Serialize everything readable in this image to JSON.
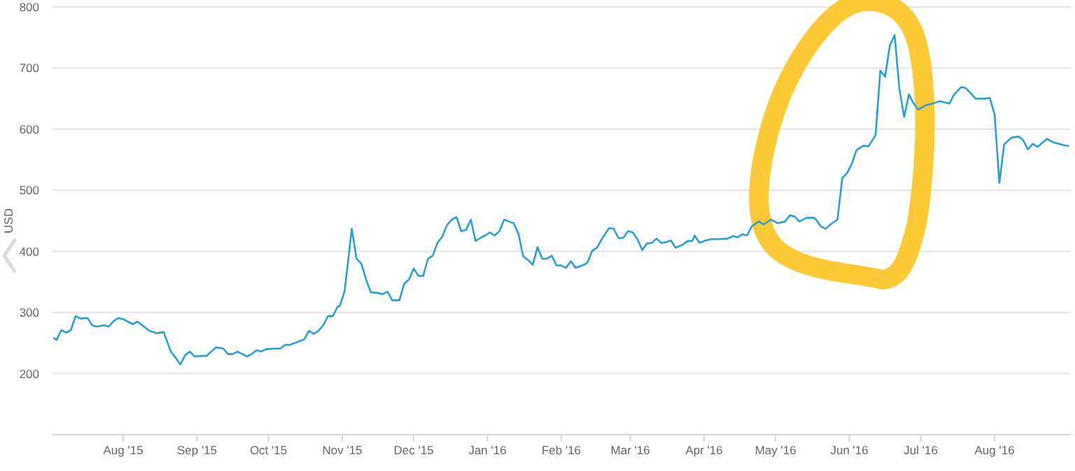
{
  "chart_data": {
    "type": "line",
    "ylabel": "USD",
    "xlim": [
      "2015-07-02",
      "2016-09-02"
    ],
    "ylim": [
      100,
      800
    ],
    "yticks": [
      200,
      300,
      400,
      500,
      600,
      700,
      800
    ],
    "xticks": [
      {
        "value": "2015-08-01",
        "label": "Aug '15"
      },
      {
        "value": "2015-09-01",
        "label": "Sep '15"
      },
      {
        "value": "2015-10-01",
        "label": "Oct '15"
      },
      {
        "value": "2015-11-01",
        "label": "Nov '15"
      },
      {
        "value": "2015-12-01",
        "label": "Dec '15"
      },
      {
        "value": "2016-01-01",
        "label": "Jan '16"
      },
      {
        "value": "2016-02-01",
        "label": "Feb '16"
      },
      {
        "value": "2016-03-01",
        "label": "Mar '16"
      },
      {
        "value": "2016-04-01",
        "label": "Apr '16"
      },
      {
        "value": "2016-05-01",
        "label": "May '16"
      },
      {
        "value": "2016-06-01",
        "label": "Jun '16"
      },
      {
        "value": "2016-07-01",
        "label": "Jul '16"
      },
      {
        "value": "2016-08-01",
        "label": "Aug '16"
      }
    ],
    "grid": "y",
    "marker": "none",
    "line_style": "solid",
    "series": [
      {
        "color": "#2a9fd6",
        "x": [
          "2015-07-03",
          "2015-07-04",
          "2015-07-06",
          "2015-07-08",
          "2015-07-10",
          "2015-07-12",
          "2015-07-14",
          "2015-07-17",
          "2015-07-19",
          "2015-07-21",
          "2015-07-24",
          "2015-07-26",
          "2015-07-28",
          "2015-07-30",
          "2015-08-01",
          "2015-08-05",
          "2015-08-07",
          "2015-08-12",
          "2015-08-15",
          "2015-08-18",
          "2015-08-21",
          "2015-08-23",
          "2015-08-25",
          "2015-08-27",
          "2015-08-29",
          "2015-08-31",
          "2015-09-03",
          "2015-09-05",
          "2015-09-07",
          "2015-09-09",
          "2015-09-12",
          "2015-09-14",
          "2015-09-16",
          "2015-09-18",
          "2015-09-22",
          "2015-09-24",
          "2015-09-26",
          "2015-09-28",
          "2015-09-30",
          "2015-10-04",
          "2015-10-06",
          "2015-10-08",
          "2015-10-10",
          "2015-10-12",
          "2015-10-14",
          "2015-10-16",
          "2015-10-18",
          "2015-10-20",
          "2015-10-22",
          "2015-10-24",
          "2015-10-26",
          "2015-10-28",
          "2015-10-30",
          "2015-10-31",
          "2015-11-02",
          "2015-11-05",
          "2015-11-07",
          "2015-11-09",
          "2015-11-11",
          "2015-11-13",
          "2015-11-16",
          "2015-11-18",
          "2015-11-20",
          "2015-11-22",
          "2015-11-25",
          "2015-11-27",
          "2015-11-29",
          "2015-12-01",
          "2015-12-03",
          "2015-12-05",
          "2015-12-07",
          "2015-12-09",
          "2015-12-11",
          "2015-12-13",
          "2015-12-15",
          "2015-12-17",
          "2015-12-19",
          "2015-12-21",
          "2015-12-23",
          "2015-12-25",
          "2015-12-27",
          "2015-12-29",
          "2015-12-31",
          "2016-01-02",
          "2016-01-04",
          "2016-01-06",
          "2016-01-08",
          "2016-01-10",
          "2016-01-12",
          "2016-01-14",
          "2016-01-16",
          "2016-01-18",
          "2016-01-20",
          "2016-01-22",
          "2016-01-24",
          "2016-01-26",
          "2016-01-28",
          "2016-01-30",
          "2016-02-01",
          "2016-02-03",
          "2016-02-05",
          "2016-02-07",
          "2016-02-09",
          "2016-02-11",
          "2016-02-12",
          "2016-02-14",
          "2016-02-16",
          "2016-02-18",
          "2016-02-21",
          "2016-02-23",
          "2016-02-25",
          "2016-02-27",
          "2016-02-29",
          "2016-03-02",
          "2016-03-04",
          "2016-03-06",
          "2016-03-08",
          "2016-03-10",
          "2016-03-12",
          "2016-03-14",
          "2016-03-16",
          "2016-03-18",
          "2016-03-20",
          "2016-03-23",
          "2016-03-25",
          "2016-03-27",
          "2016-03-28",
          "2016-03-30",
          "2016-04-01",
          "2016-04-04",
          "2016-04-07",
          "2016-04-11",
          "2016-04-13",
          "2016-04-15",
          "2016-04-17",
          "2016-04-19",
          "2016-04-21",
          "2016-04-24",
          "2016-04-26",
          "2016-04-29",
          "2016-05-02",
          "2016-05-05",
          "2016-05-07",
          "2016-05-09",
          "2016-05-11",
          "2016-05-14",
          "2016-05-17",
          "2016-05-18",
          "2016-05-20",
          "2016-05-22",
          "2016-05-24",
          "2016-05-27",
          "2016-05-29",
          "2016-05-31",
          "2016-06-02",
          "2016-06-04",
          "2016-06-07",
          "2016-06-09",
          "2016-06-12",
          "2016-06-14",
          "2016-06-16",
          "2016-06-18",
          "2016-06-20",
          "2016-06-22",
          "2016-06-24",
          "2016-06-26",
          "2016-06-28",
          "2016-06-30",
          "2016-07-03",
          "2016-07-06",
          "2016-07-09",
          "2016-07-11",
          "2016-07-13",
          "2016-07-15",
          "2016-07-18",
          "2016-07-20",
          "2016-07-24",
          "2016-07-28",
          "2016-07-30",
          "2016-08-01",
          "2016-08-03",
          "2016-08-05",
          "2016-08-08",
          "2016-08-11",
          "2016-08-13",
          "2016-08-15",
          "2016-08-17",
          "2016-08-19",
          "2016-08-23",
          "2016-08-26",
          "2016-08-29",
          "2016-08-31",
          "2016-09-01"
        ],
        "values": [
          258,
          255,
          271,
          267,
          271,
          294,
          290,
          291,
          279,
          277,
          279,
          277,
          286,
          291,
          289,
          281,
          285,
          270,
          266,
          268,
          236,
          226,
          215,
          230,
          236,
          228,
          229,
          229,
          236,
          243,
          241,
          232,
          232,
          236,
          228,
          232,
          238,
          236,
          240,
          241,
          241,
          247,
          247,
          250,
          253,
          256,
          270,
          265,
          270,
          279,
          294,
          294,
          309,
          311,
          335,
          437,
          388,
          380,
          354,
          333,
          332,
          330,
          334,
          320,
          320,
          347,
          354,
          372,
          360,
          360,
          388,
          393,
          414,
          424,
          443,
          452,
          456,
          433,
          435,
          452,
          417,
          422,
          426,
          431,
          426,
          433,
          452,
          449,
          446,
          429,
          392,
          386,
          378,
          407,
          388,
          388,
          393,
          377,
          377,
          373,
          384,
          373,
          376,
          379,
          382,
          401,
          406,
          420,
          438,
          437,
          422,
          422,
          433,
          431,
          420,
          402,
          413,
          414,
          421,
          414,
          415,
          418,
          406,
          411,
          417,
          417,
          426,
          414,
          417,
          420,
          420,
          421,
          425,
          423,
          428,
          426,
          441,
          449,
          444,
          452,
          446,
          449,
          459,
          457,
          449,
          455,
          455,
          452,
          441,
          437,
          444,
          452,
          520,
          528,
          543,
          566,
          573,
          572,
          590,
          696,
          686,
          737,
          754,
          666,
          620,
          657,
          642,
          632,
          639,
          642,
          646,
          644,
          642,
          657,
          669,
          667,
          650,
          650,
          651,
          624,
          512,
          575,
          586,
          588,
          582,
          567,
          576,
          571,
          584,
          578,
          575,
          573,
          573
        ]
      }
    ]
  }
}
